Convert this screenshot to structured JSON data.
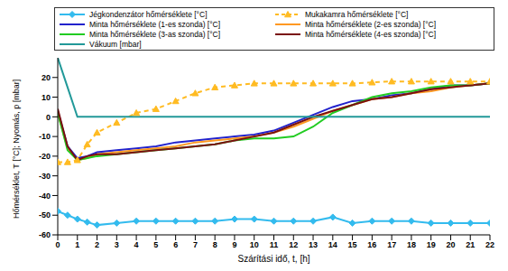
{
  "chart_data": {
    "type": "line",
    "x_label": "Szárítási idő, t, [h]",
    "y_label": "Hőmérséklet, T [°C]; Nyomás, p [mbar]",
    "x": [
      0,
      0.5,
      1,
      1.5,
      2,
      3,
      4,
      5,
      6,
      7,
      8,
      9,
      10,
      11,
      12,
      13,
      14,
      15,
      16,
      17,
      18,
      19,
      20,
      21,
      22
    ],
    "xlim": [
      0,
      22
    ],
    "xticks": [
      0,
      1,
      2,
      3,
      4,
      5,
      6,
      7,
      8,
      9,
      10,
      11,
      12,
      13,
      14,
      15,
      16,
      17,
      18,
      19,
      20,
      21,
      22
    ],
    "ylim": [
      -60,
      30
    ],
    "yticks": [
      -60,
      -50,
      -40,
      -30,
      -20,
      -10,
      0,
      10,
      20
    ],
    "grid": false,
    "series": [
      {
        "name": "Jégkondenzátor hőmérséklete [°C]",
        "color": "#33bbee",
        "marker": "diamond",
        "line_style": "solid",
        "values": [
          -48,
          -50,
          -52,
          -53.5,
          -55,
          -54,
          -53,
          -53,
          -53,
          -53,
          -53,
          -52,
          -52,
          -53,
          -53,
          -53,
          -51,
          -54,
          -53,
          -53,
          -53,
          -54,
          -54,
          -54,
          -54
        ]
      },
      {
        "name": "Mukakamra hőmérséklete [°C]",
        "color": "#ffbb22",
        "marker": "triangle",
        "line_style": "dashed",
        "values": [
          -23,
          -23,
          -22,
          -14,
          -8,
          -3,
          2,
          4,
          8,
          12,
          15,
          16,
          17,
          17,
          17,
          17,
          17,
          17,
          17.5,
          18,
          18,
          18,
          18,
          18,
          18
        ]
      },
      {
        "name": "Minta hőmérséklete (1-es szonda) [°C]",
        "color": "#2222cc",
        "marker": "none",
        "line_style": "solid",
        "values": [
          3,
          -15,
          -21,
          -20,
          -18,
          -17,
          -16,
          -15,
          -13,
          -12,
          -11,
          -10,
          -9,
          -7,
          -3,
          1,
          5,
          8,
          9,
          11,
          12,
          14,
          16,
          16,
          17
        ]
      },
      {
        "name": "Minta hőmérséklete (2-es szonda) [°C]",
        "color": "#ff9922",
        "marker": "none",
        "line_style": "solid",
        "values": [
          2,
          -16,
          -22,
          -21,
          -19,
          -18,
          -17,
          -16,
          -15,
          -13,
          -12,
          -11,
          -10,
          -8,
          -5,
          -1,
          3,
          6,
          9,
          10,
          12,
          13,
          15,
          16,
          17
        ]
      },
      {
        "name": "Minta hőmérséklete (3-as szonda) [°C]",
        "color": "#22cc22",
        "marker": "none",
        "line_style": "solid",
        "values": [
          2,
          -17,
          -22,
          -21,
          -20,
          -19,
          -18,
          -17,
          -16,
          -15,
          -14,
          -12,
          -11,
          -11,
          -10,
          -5,
          2,
          6,
          10,
          12,
          13,
          15,
          16,
          16,
          17
        ]
      },
      {
        "name": "Minta hőmérséklete (4-es szonda) [°C]",
        "color": "#7a1010",
        "marker": "none",
        "line_style": "solid",
        "values": [
          4,
          -15,
          -22,
          -20,
          -19,
          -19,
          -18,
          -17,
          -16,
          -15,
          -14,
          -12,
          -10,
          -8,
          -4,
          0,
          3,
          6,
          9,
          10,
          12,
          14,
          15,
          16,
          17
        ]
      },
      {
        "name": "Vákuum [mbar]",
        "color": "#229999",
        "marker": "none",
        "line_style": "solid",
        "values": [
          30,
          15,
          0,
          0,
          0,
          0,
          0,
          0,
          0,
          0,
          0,
          0,
          0,
          0,
          0,
          0,
          0,
          0,
          0,
          0,
          0,
          0,
          0,
          0,
          0
        ]
      }
    ]
  }
}
